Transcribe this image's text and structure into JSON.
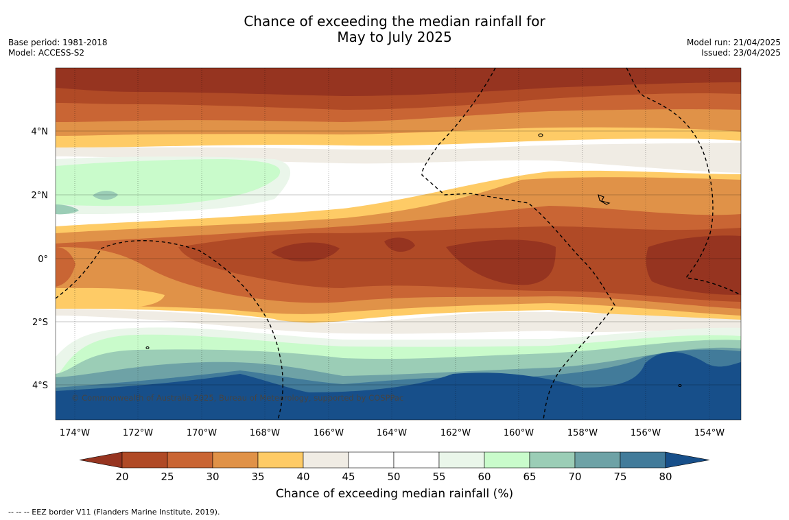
{
  "title_line1": "Chance of exceeding the median rainfall for",
  "title_line2": "May to July 2025",
  "left_meta": [
    "Base period: 1981-2018",
    "Model: ACCESS-S2"
  ],
  "right_meta": [
    "Model run: 21/04/2025",
    "Issued: 23/04/2025"
  ],
  "lat_ticks": [
    "4°N",
    "2°N",
    "0°",
    "2°S",
    "4°S"
  ],
  "lon_ticks": [
    "174°W",
    "172°W",
    "170°W",
    "168°W",
    "166°W",
    "164°W",
    "162°W",
    "160°W",
    "158°W",
    "156°W",
    "154°W"
  ],
  "copyright": "© Commonwealth of Australia 2025, Bureau of Meteorology, supported by COSPPac",
  "colorbar": {
    "label": "Chance of exceeding median rainfall (%)",
    "ticks": [
      "20",
      "25",
      "30",
      "35",
      "40",
      "45",
      "50",
      "55",
      "60",
      "65",
      "70",
      "75",
      "80"
    ],
    "colors": [
      "#963420",
      "#b04a26",
      "#c96534",
      "#e09248",
      "#fecb66",
      "#f0ece4",
      "#ffffff",
      "#ffffff",
      "#eaf6ea",
      "#c9fbcb",
      "#9bcdb6",
      "#6ea2a6",
      "#427b9a",
      "#174f8a"
    ]
  },
  "footer": "--  --  -- EEZ border V11 (Flanders Marine Institute, 2019)."
}
